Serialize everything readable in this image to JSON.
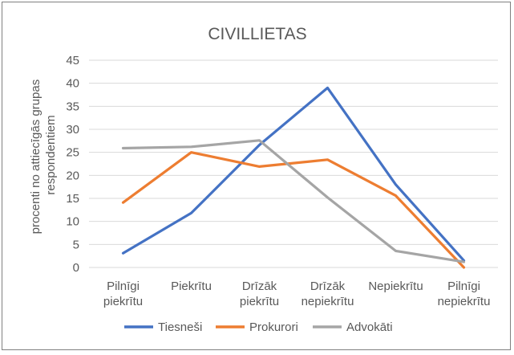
{
  "chart_data": {
    "type": "line",
    "title": "CIVILLIETAS",
    "ylabel_lines": [
      "procenti no attiecīgās grupas",
      "respondentiem"
    ],
    "xlabel": "",
    "ylim": [
      0,
      45
    ],
    "yticks": [
      0,
      5,
      10,
      15,
      20,
      25,
      30,
      35,
      40,
      45
    ],
    "grid": true,
    "legend_position": "bottom",
    "categories": [
      [
        "Pilnīgi",
        "piekrītu"
      ],
      [
        "Piekrītu"
      ],
      [
        "Drīzāk",
        "piekrītu"
      ],
      [
        "Drīzāk",
        "nepiekrītu"
      ],
      [
        "Nepiekrītu"
      ],
      [
        "Pilnīgi",
        "nepiekrītu"
      ]
    ],
    "series": [
      {
        "name": "Tiesneši",
        "color": "#4472C4",
        "values": [
          3.1,
          11.8,
          26.6,
          39.0,
          18.0,
          1.5
        ]
      },
      {
        "name": "Prokurori",
        "color": "#ED7D31",
        "values": [
          14.1,
          25.0,
          21.9,
          23.4,
          15.6,
          0.0
        ]
      },
      {
        "name": "Advokāti",
        "color": "#A5A5A5",
        "values": [
          25.9,
          26.2,
          27.6,
          15.2,
          3.6,
          1.2
        ]
      }
    ]
  }
}
